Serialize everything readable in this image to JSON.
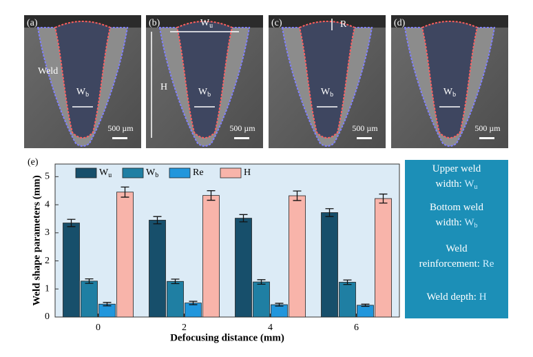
{
  "panels": [
    {
      "label": "(a)",
      "scale": "500 µm",
      "marks": [
        "Weld",
        "Wb"
      ]
    },
    {
      "label": "(b)",
      "scale": "500 µm",
      "marks": [
        "Wu",
        "H",
        "Wb"
      ]
    },
    {
      "label": "(c)",
      "scale": "500 µm",
      "marks": [
        "R",
        "Wb"
      ]
    },
    {
      "label": "(d)",
      "scale": "500 µm",
      "marks": [
        "Wb"
      ]
    }
  ],
  "chart_data": {
    "type": "bar",
    "panel_label": "(e)",
    "xlabel": "Defocusing distance (mm)",
    "ylabel": "Weld shape parameters (mm)",
    "categories": [
      "0",
      "2",
      "4",
      "6"
    ],
    "series": [
      {
        "name": "Wu",
        "color": "#174f6b",
        "values": [
          3.35,
          3.45,
          3.52,
          3.72
        ],
        "errors": [
          0.13,
          0.13,
          0.13,
          0.14
        ]
      },
      {
        "name": "Wb",
        "color": "#1f7fa3",
        "values": [
          1.28,
          1.27,
          1.25,
          1.24
        ],
        "errors": [
          0.08,
          0.08,
          0.08,
          0.08
        ]
      },
      {
        "name": "Re",
        "color": "#2196dc",
        "values": [
          0.46,
          0.5,
          0.44,
          0.42
        ],
        "errors": [
          0.06,
          0.06,
          0.05,
          0.04
        ]
      },
      {
        "name": "H",
        "color": "#f8b4aa",
        "values": [
          4.45,
          4.33,
          4.32,
          4.22
        ],
        "errors": [
          0.18,
          0.17,
          0.17,
          0.16
        ]
      }
    ],
    "ylim": [
      0,
      5.45
    ],
    "yticks": [
      0,
      1,
      2,
      3,
      4,
      5
    ],
    "annotations": [
      {
        "lines": [
          "Upper weld",
          "width:"
        ],
        "symbol": "Wu"
      },
      {
        "lines": [
          "Bottom weld",
          "width:"
        ],
        "symbol": "Wb"
      },
      {
        "lines": [
          "Weld",
          "reinforcement:"
        ],
        "symbol": "Re"
      },
      {
        "lines": [
          "Weld depth:"
        ],
        "symbol": "H"
      }
    ]
  }
}
